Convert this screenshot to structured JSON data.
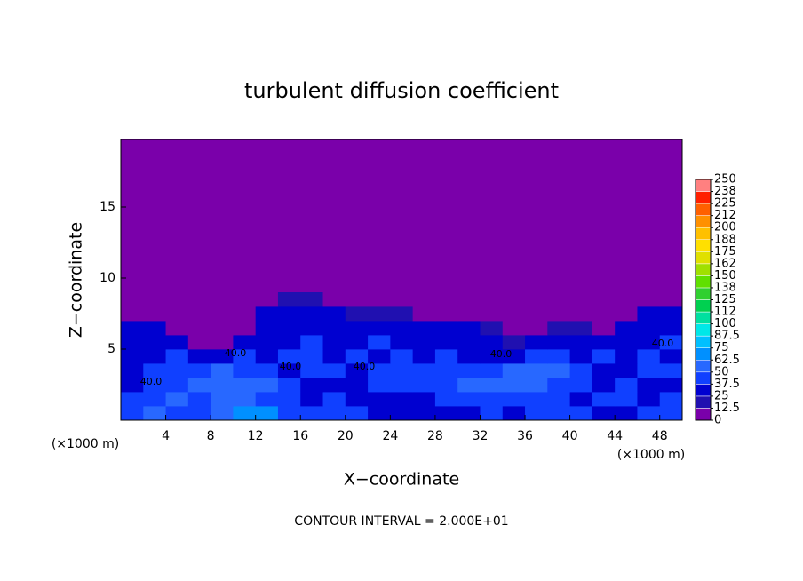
{
  "chart_data": {
    "type": "heatmap",
    "title": "turbulent diffusion coefficient",
    "x_label": "X−coordinate",
    "y_label": "Z−coordinate",
    "x_unit_left": "(×1000 m)",
    "x_unit_right": "(×1000 m)",
    "footer": "CONTOUR INTERVAL = 2.000E+01",
    "contour_labels": [
      "40.0",
      "40.0",
      "40.0",
      "40.0",
      "40.0",
      "40.0"
    ],
    "xlim": [
      0,
      50
    ],
    "ylim": [
      0,
      19.75
    ],
    "xticks": [
      4,
      8,
      12,
      16,
      20,
      24,
      28,
      32,
      36,
      40,
      44,
      48
    ],
    "yticks": [
      5,
      10,
      15
    ],
    "x_edges": [
      0,
      2,
      4,
      6,
      8,
      10,
      12,
      14,
      16,
      18,
      20,
      22,
      24,
      26,
      28,
      30,
      32,
      34,
      36,
      38,
      40,
      42,
      44,
      46,
      48,
      50
    ],
    "z_edges": [
      0,
      1,
      2,
      3,
      4,
      5,
      6,
      7,
      8,
      9
    ],
    "z": [
      [
        45,
        50,
        40,
        45,
        60,
        70,
        65,
        45,
        40,
        45,
        40,
        35,
        30,
        30,
        35,
        35,
        40,
        35,
        40,
        45,
        40,
        35,
        35,
        40,
        45
      ],
      [
        40,
        45,
        50,
        45,
        55,
        60,
        45,
        40,
        35,
        40,
        35,
        35,
        35,
        35,
        40,
        40,
        45,
        40,
        40,
        40,
        35,
        40,
        40,
        35,
        40
      ],
      [
        35,
        40,
        45,
        50,
        50,
        55,
        50,
        45,
        35,
        35,
        35,
        40,
        40,
        45,
        45,
        50,
        55,
        60,
        55,
        40,
        40,
        35,
        40,
        35,
        35
      ],
      [
        35,
        40,
        40,
        45,
        50,
        45,
        40,
        35,
        40,
        40,
        35,
        40,
        40,
        45,
        40,
        45,
        45,
        50,
        55,
        50,
        40,
        35,
        35,
        40,
        40
      ],
      [
        30,
        35,
        40,
        35,
        30,
        40,
        35,
        40,
        40,
        35,
        40,
        35,
        40,
        35,
        40,
        35,
        30,
        30,
        40,
        40,
        35,
        40,
        35,
        40,
        35
      ],
      [
        30,
        35,
        30,
        0,
        0,
        30,
        35,
        35,
        40,
        35,
        35,
        40,
        35,
        35,
        35,
        30,
        30,
        15,
        30,
        35,
        30,
        30,
        35,
        35,
        40
      ],
      [
        25,
        25,
        0,
        0,
        0,
        0,
        35,
        35,
        35,
        35,
        30,
        35,
        30,
        30,
        30,
        30,
        15,
        0,
        0,
        15,
        15,
        0,
        30,
        35,
        35
      ],
      [
        12,
        0,
        0,
        0,
        0,
        0,
        30,
        30,
        30,
        25,
        15,
        15,
        15,
        0,
        0,
        0,
        0,
        0,
        0,
        0,
        0,
        0,
        0,
        30,
        30
      ],
      [
        0,
        0,
        0,
        0,
        0,
        0,
        0,
        15,
        15,
        0,
        0,
        0,
        0,
        0,
        0,
        0,
        0,
        0,
        0,
        0,
        0,
        0,
        0,
        0,
        0
      ]
    ],
    "colorbar_levels": [
      0,
      12.5,
      25,
      37.5,
      50,
      62.5,
      75,
      87.5,
      100,
      112,
      125,
      138,
      150,
      162,
      175,
      188,
      200,
      212,
      225,
      238,
      250
    ],
    "colorbar_colors": [
      "#7a00aa",
      "#2010b0",
      "#0000d0",
      "#1040ff",
      "#2868ff",
      "#0090ff",
      "#00c0ff",
      "#00e8e8",
      "#00e0a0",
      "#00d050",
      "#30d030",
      "#60e000",
      "#a0e000",
      "#e0e000",
      "#ffe000",
      "#ffc000",
      "#ff9000",
      "#ff6000",
      "#ff2000",
      "#ff8080"
    ]
  }
}
